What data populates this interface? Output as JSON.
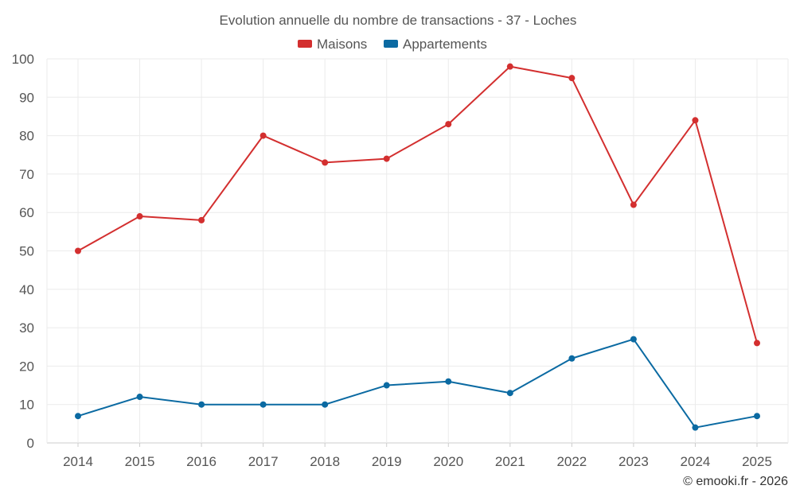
{
  "chart_data": {
    "type": "line",
    "title": "Evolution annuelle du nombre de transactions - 37 - Loches",
    "categories": [
      "2014",
      "2015",
      "2016",
      "2017",
      "2018",
      "2019",
      "2020",
      "2021",
      "2022",
      "2023",
      "2024",
      "2025"
    ],
    "series": [
      {
        "name": "Maisons",
        "color": "#d32f2f",
        "values": [
          50,
          59,
          58,
          80,
          73,
          74,
          83,
          98,
          95,
          62,
          84,
          26
        ]
      },
      {
        "name": "Appartements",
        "color": "#0b6aa2",
        "values": [
          7,
          12,
          10,
          10,
          10,
          15,
          16,
          13,
          22,
          27,
          4,
          7
        ]
      }
    ],
    "ylim": [
      0,
      100
    ],
    "yticks": [
      0,
      10,
      20,
      30,
      40,
      50,
      60,
      70,
      80,
      90,
      100
    ],
    "grid": true,
    "legend": "top-center",
    "xlabel": "",
    "ylabel": ""
  },
  "credit": "© emooki.fr - 2026"
}
